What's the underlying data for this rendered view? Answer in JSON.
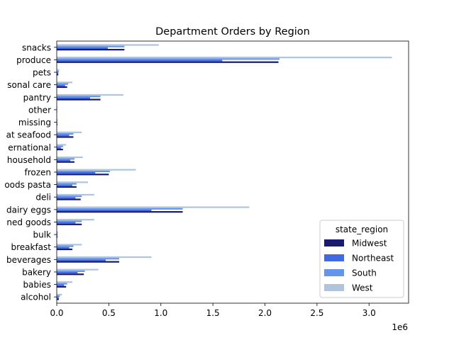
{
  "chart_data": {
    "type": "bar",
    "orientation": "horizontal",
    "title": "Department Orders by Region",
    "xlabel": "",
    "ylabel": "",
    "x_offset_label": "1e6",
    "xlim": [
      0,
      3.38
    ],
    "x_ticks": [
      "0.0",
      "0.5",
      "1.0",
      "1.5",
      "2.0",
      "2.5",
      "3.0"
    ],
    "grid": false,
    "legend": {
      "title": "state_region",
      "placement": "lower-right"
    },
    "categories": [
      "alcohol",
      "babies",
      "bakery",
      "beverages",
      "breakfast",
      "bulk",
      "canned goods",
      "dairy eggs",
      "deli",
      "dry goods pasta",
      "frozen",
      "household",
      "international",
      "meat seafood",
      "missing",
      "other",
      "pantry",
      "personal care",
      "pets",
      "produce",
      "snacks"
    ],
    "category_labels": [
      "alcohol",
      "babies",
      "bakery",
      "beverages",
      "breakfast",
      "bulk",
      "ned goods",
      "dairy eggs",
      "deli",
      "oods pasta",
      "frozen",
      "household",
      "ernational",
      "at seafood",
      "missing",
      "other",
      "pantry",
      "sonal care",
      "pets",
      "produce",
      "snacks"
    ],
    "series": [
      {
        "name": "Midwest",
        "color": "#191970",
        "values": [
          0.02,
          0.09,
          0.26,
          0.6,
          0.15,
          0.007,
          0.24,
          1.21,
          0.23,
          0.19,
          0.5,
          0.17,
          0.06,
          0.16,
          0.006,
          0.003,
          0.42,
          0.1,
          0.015,
          2.13,
          0.65
        ]
      },
      {
        "name": "Northeast",
        "color": "#4169e1",
        "values": [
          0.02,
          0.07,
          0.2,
          0.47,
          0.12,
          0.006,
          0.18,
          0.91,
          0.18,
          0.15,
          0.37,
          0.13,
          0.04,
          0.12,
          0.005,
          0.003,
          0.32,
          0.08,
          0.015,
          1.59,
          0.49
        ]
      },
      {
        "name": "South",
        "color": "#6495ed",
        "values": [
          0.03,
          0.1,
          0.27,
          0.6,
          0.16,
          0.008,
          0.24,
          1.21,
          0.24,
          0.19,
          0.51,
          0.17,
          0.06,
          0.16,
          0.006,
          0.004,
          0.42,
          0.11,
          0.02,
          2.14,
          0.65
        ]
      },
      {
        "name": "West",
        "color": "#b0c4de",
        "values": [
          0.05,
          0.15,
          0.4,
          0.91,
          0.24,
          0.012,
          0.36,
          1.85,
          0.36,
          0.3,
          0.76,
          0.25,
          0.09,
          0.24,
          0.009,
          0.006,
          0.64,
          0.15,
          0.025,
          3.22,
          0.98
        ]
      }
    ]
  }
}
